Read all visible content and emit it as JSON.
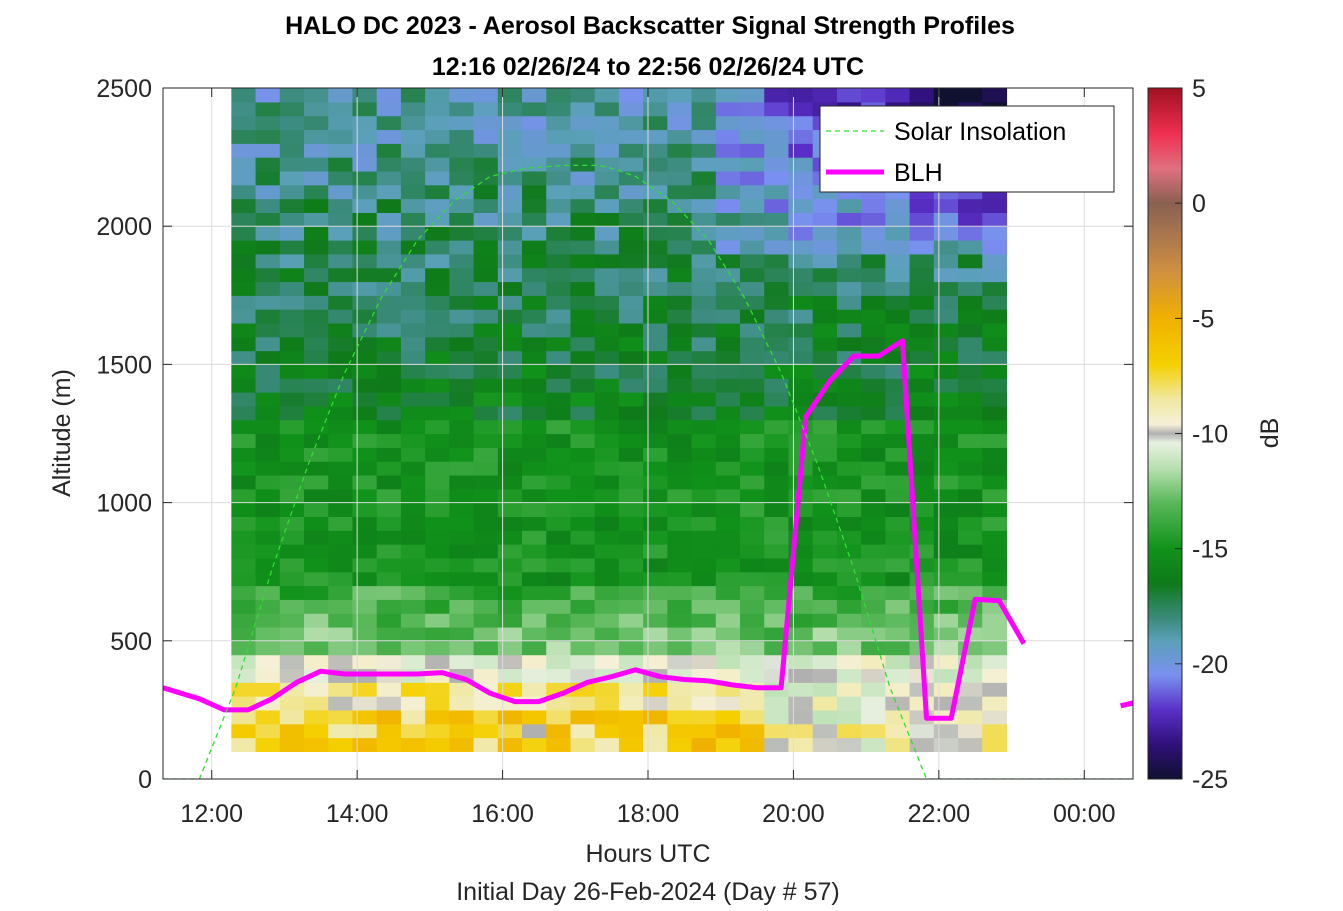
{
  "title_line1": "HALO DC 2023 - Aerosol Backscatter Signal Strength Profiles",
  "title_line2": "12:16 02/26/24 to 22:56 02/26/24  UTC",
  "xlabel": "Hours UTC",
  "ylabel": "Altitude (m)",
  "footer": "Initial Day 26-Feb-2024 (Day # 57)",
  "colorbar": {
    "label": "dB",
    "ticks": [
      "5",
      "0",
      "-5",
      "-10",
      "-15",
      "-20",
      "-25"
    ],
    "range": [
      -25,
      5
    ],
    "stops": [
      {
        "db": -25,
        "color": "#101030"
      },
      {
        "db": -23.5,
        "color": "#30107a"
      },
      {
        "db": -22,
        "color": "#5a2fc8"
      },
      {
        "db": -20.5,
        "color": "#7a90f0"
      },
      {
        "db": -19,
        "color": "#5aa0b8"
      },
      {
        "db": -18,
        "color": "#3a8a7a"
      },
      {
        "db": -16.5,
        "color": "#0f7a1a"
      },
      {
        "db": -15,
        "color": "#10921a"
      },
      {
        "db": -13,
        "color": "#5ab85a"
      },
      {
        "db": -11.5,
        "color": "#b8e0b0"
      },
      {
        "db": -10.4,
        "color": "#e8f0e0"
      },
      {
        "db": -10,
        "color": "#b0b0b0"
      },
      {
        "db": -9.6,
        "color": "#f5f0d8"
      },
      {
        "db": -8.5,
        "color": "#f0e8a0"
      },
      {
        "db": -7,
        "color": "#f5d000"
      },
      {
        "db": -5,
        "color": "#f0b000"
      },
      {
        "db": -3,
        "color": "#d09040"
      },
      {
        "db": -1,
        "color": "#a07050"
      },
      {
        "db": 0,
        "color": "#8a6050"
      },
      {
        "db": 1.5,
        "color": "#e07080"
      },
      {
        "db": 3,
        "color": "#f03050"
      },
      {
        "db": 5,
        "color": "#a01020"
      }
    ]
  },
  "legend": [
    {
      "label": "Solar Insolation",
      "color": "#33dd33",
      "style": "dashed"
    },
    {
      "label": "BLH",
      "color": "#ff00ff",
      "style": "solid"
    }
  ],
  "chart_data": {
    "type": "heatmap",
    "xlim_hours": [
      11.33,
      24.67
    ],
    "ylim": [
      0,
      2500
    ],
    "x_ticks": [
      "12:00",
      "14:00",
      "16:00",
      "18:00",
      "20:00",
      "22:00",
      "00:00"
    ],
    "y_ticks": [
      "0",
      "500",
      "1000",
      "1500",
      "2000",
      "2500"
    ],
    "grid": true,
    "legend_position": "top-right",
    "heatmap": {
      "x_start_hours": 12.27,
      "x_end_hours": 22.93,
      "y_bottom": 100,
      "y_top": 2500,
      "columns": 32,
      "row_height_m": 50,
      "unit": "dB"
    },
    "series": [
      {
        "name": "BLH",
        "x": [
          11.33,
          11.83,
          12.17,
          12.5,
          12.83,
          13.17,
          13.5,
          13.83,
          14.17,
          14.5,
          14.83,
          15.17,
          15.5,
          15.83,
          16.17,
          16.5,
          16.83,
          17.17,
          17.5,
          17.83,
          18.17,
          18.5,
          18.83,
          19.17,
          19.5,
          19.83,
          20.17,
          20.5,
          20.83,
          21.17,
          21.5,
          21.83,
          22.17,
          22.5,
          22.83,
          23.17
        ],
        "y": [
          330,
          290,
          250,
          250,
          290,
          350,
          390,
          380,
          380,
          380,
          380,
          385,
          360,
          310,
          280,
          280,
          310,
          350,
          370,
          395,
          370,
          360,
          355,
          340,
          330,
          330,
          1310,
          1440,
          1530,
          1530,
          1585,
          220,
          220,
          650,
          645,
          490
        ]
      },
      {
        "name": "BLH",
        "x": [
          24.5,
          24.67
        ],
        "y": [
          265,
          275
        ]
      },
      {
        "name": "Solar Insolation",
        "style": "dashed",
        "x": [
          11.33,
          11.83,
          12.33,
          12.83,
          13.33,
          13.83,
          14.33,
          14.83,
          15.33,
          15.83,
          16.33,
          16.83,
          17.33,
          17.5,
          17.83,
          18.33,
          18.83,
          19.33,
          19.83,
          20.33,
          20.83,
          21.33,
          21.83,
          22.33,
          22.83,
          22.93,
          23.5,
          24.0,
          24.67
        ],
        "y": [
          0,
          0,
          330,
          760,
          1140,
          1470,
          1740,
          1950,
          2090,
          2180,
          2210,
          2220,
          2220,
          2210,
          2180,
          2090,
          1950,
          1740,
          1470,
          1140,
          760,
          330,
          0,
          0,
          0,
          0,
          0,
          0,
          0
        ]
      }
    ]
  }
}
